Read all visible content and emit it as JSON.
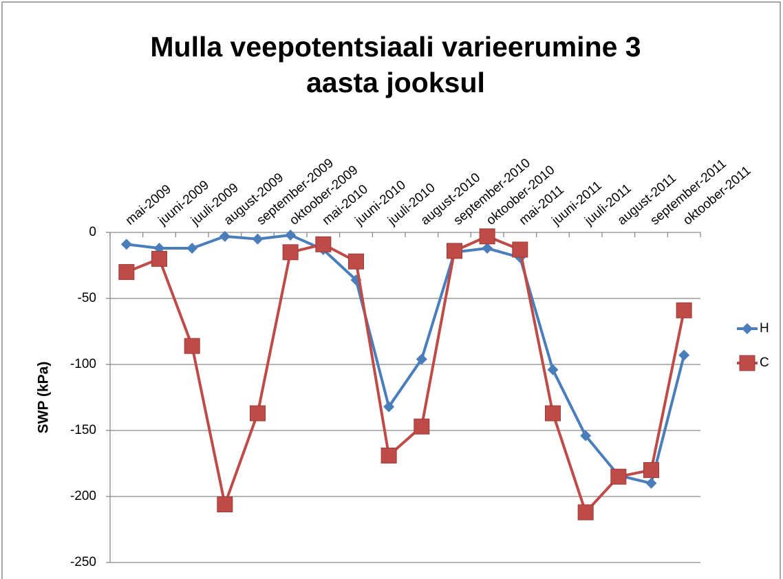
{
  "chart_data": {
    "type": "line",
    "title": "Mulla veepotentsiaali varieerumine 3 aasta jooksul",
    "ylabel": "SWP (kPa)",
    "categories": [
      "mai-2009",
      "juuni-2009",
      "juuli-2009",
      "august-2009",
      "september-2009",
      "oktoober-2009",
      "mai-2010",
      "juuni-2010",
      "juuli-2010",
      "august-2010",
      "september-2010",
      "oktoober-2010",
      "mai-2011",
      "juuni-2011",
      "juuli-2011",
      "august-2011",
      "september-2011",
      "oktoober-2011"
    ],
    "series": [
      {
        "name": "H",
        "color": "#4a7ebb",
        "marker": "diamond",
        "values": [
          -9,
          -12,
          -12,
          -3,
          -5,
          -2,
          -13,
          -36,
          -132,
          -96,
          -15,
          -12,
          -19,
          -104,
          -154,
          -184,
          -190,
          -93
        ]
      },
      {
        "name": "C",
        "color": "#be4b48",
        "marker": "square",
        "values": [
          -30,
          -20,
          -86,
          -206,
          -137,
          -15,
          -9,
          -22,
          -169,
          -147,
          -14,
          -3,
          -13,
          -137,
          -212,
          -185,
          -180,
          -59
        ]
      }
    ],
    "ylim": [
      -250,
      0
    ],
    "yticks": [
      0,
      -50,
      -100,
      -150,
      -200,
      -250
    ],
    "grid": true,
    "legend": "right"
  }
}
